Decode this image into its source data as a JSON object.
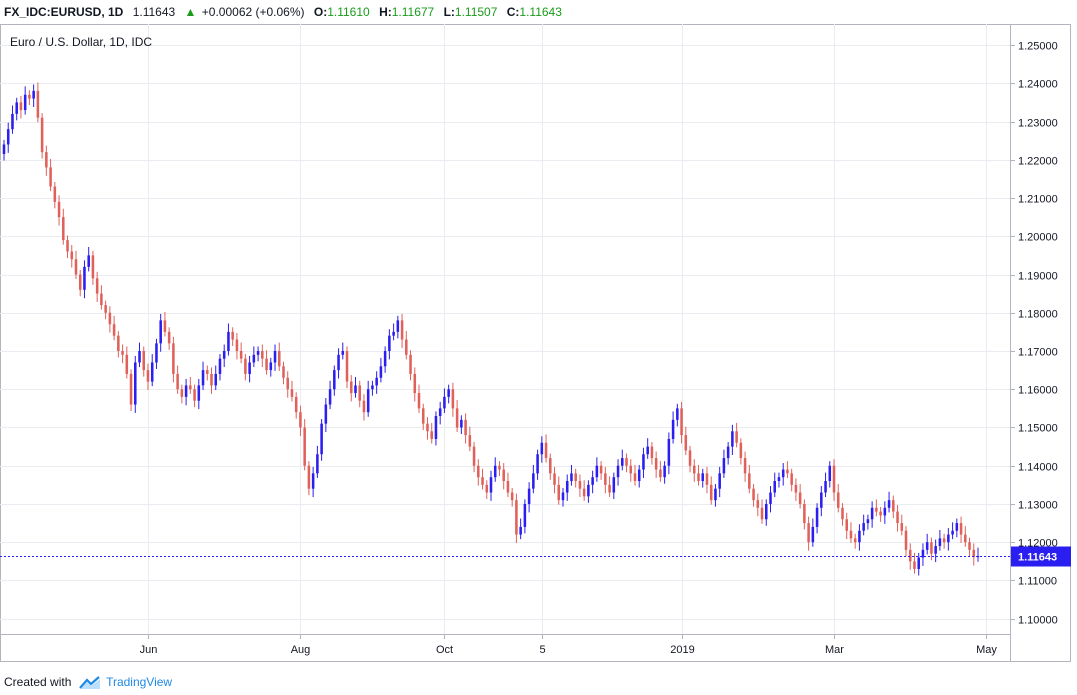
{
  "header": {
    "symbol": "FX_IDC:EURUSD, 1D",
    "last": "1.11643",
    "change": "+0.00062 (+0.06%)",
    "o_label": "O:",
    "o_value": "1.11610",
    "h_label": "H:",
    "h_value": "1.11677",
    "l_label": "L:",
    "l_value": "1.11507",
    "c_label": "C:",
    "c_value": "1.11643",
    "up_color": "#26a69a"
  },
  "footer": {
    "created_with": "Created with",
    "brand": "TradingView"
  },
  "colors": {
    "up": "#2a1ef0",
    "down": "#e0605a",
    "price_line": "#2a1ef0",
    "grid": "#e9edf2"
  },
  "chart_data": {
    "type": "candlestick",
    "title": "Euro / U.S. Dollar, 1D, IDC",
    "ylim": [
      1.096,
      1.2555
    ],
    "y_ticks": [
      "1.25000",
      "1.24000",
      "1.23000",
      "1.22000",
      "1.21000",
      "1.20000",
      "1.19000",
      "1.18000",
      "1.17000",
      "1.16000",
      "1.15000",
      "1.14000",
      "1.13000",
      "1.12000",
      "1.11000",
      "1.10000"
    ],
    "x_ticks": [
      {
        "label": "Jun",
        "index": 34
      },
      {
        "label": "Aug",
        "index": 70
      },
      {
        "label": "Oct",
        "index": 104
      },
      {
        "label": "5",
        "index": 127
      },
      {
        "label": "2019",
        "index": 160
      },
      {
        "label": "Mar",
        "index": 196
      },
      {
        "label": "May",
        "index": 232
      }
    ],
    "last_price": 1.11643,
    "last_price_label": "1.11643",
    "grid": true,
    "close": [
      1.224,
      1.228,
      1.232,
      1.235,
      1.233,
      1.237,
      1.236,
      1.238,
      1.231,
      1.222,
      1.218,
      1.213,
      1.209,
      1.205,
      1.199,
      1.196,
      1.194,
      1.19,
      1.186,
      1.192,
      1.195,
      1.189,
      1.185,
      1.182,
      1.18,
      1.177,
      1.174,
      1.17,
      1.169,
      1.164,
      1.156,
      1.167,
      1.17,
      1.165,
      1.162,
      1.167,
      1.172,
      1.178,
      1.175,
      1.172,
      1.164,
      1.16,
      1.158,
      1.161,
      1.16,
      1.157,
      1.161,
      1.165,
      1.164,
      1.161,
      1.164,
      1.168,
      1.17,
      1.175,
      1.173,
      1.17,
      1.168,
      1.164,
      1.167,
      1.169,
      1.17,
      1.168,
      1.165,
      1.167,
      1.17,
      1.166,
      1.163,
      1.16,
      1.158,
      1.154,
      1.15,
      1.14,
      1.134,
      1.138,
      1.143,
      1.151,
      1.156,
      1.16,
      1.165,
      1.169,
      1.17,
      1.162,
      1.159,
      1.161,
      1.157,
      1.154,
      1.16,
      1.161,
      1.163,
      1.166,
      1.17,
      1.174,
      1.175,
      1.178,
      1.173,
      1.169,
      1.164,
      1.159,
      1.155,
      1.151,
      1.149,
      1.147,
      1.153,
      1.155,
      1.158,
      1.16,
      1.155,
      1.15,
      1.152,
      1.148,
      1.145,
      1.14,
      1.137,
      1.135,
      1.133,
      1.137,
      1.14,
      1.139,
      1.136,
      1.133,
      1.131,
      1.122,
      1.124,
      1.13,
      1.134,
      1.138,
      1.143,
      1.146,
      1.142,
      1.138,
      1.135,
      1.131,
      1.133,
      1.136,
      1.138,
      1.136,
      1.134,
      1.132,
      1.135,
      1.137,
      1.14,
      1.138,
      1.135,
      1.133,
      1.137,
      1.14,
      1.142,
      1.14,
      1.138,
      1.136,
      1.139,
      1.143,
      1.145,
      1.142,
      1.139,
      1.137,
      1.14,
      1.147,
      1.152,
      1.155,
      1.148,
      1.144,
      1.14,
      1.138,
      1.136,
      1.138,
      1.135,
      1.131,
      1.134,
      1.138,
      1.142,
      1.145,
      1.149,
      1.146,
      1.142,
      1.138,
      1.134,
      1.131,
      1.129,
      1.126,
      1.13,
      1.133,
      1.136,
      1.137,
      1.139,
      1.138,
      1.135,
      1.133,
      1.13,
      1.125,
      1.12,
      1.124,
      1.129,
      1.133,
      1.136,
      1.14,
      1.133,
      1.129,
      1.126,
      1.123,
      1.121,
      1.12,
      1.123,
      1.125,
      1.126,
      1.129,
      1.128,
      1.127,
      1.129,
      1.131,
      1.128,
      1.125,
      1.123,
      1.118,
      1.115,
      1.113,
      1.116,
      1.118,
      1.12,
      1.117,
      1.119,
      1.121,
      1.12,
      1.122,
      1.123,
      1.125,
      1.122,
      1.12,
      1.118,
      1.1161,
      1.1164
    ]
  }
}
